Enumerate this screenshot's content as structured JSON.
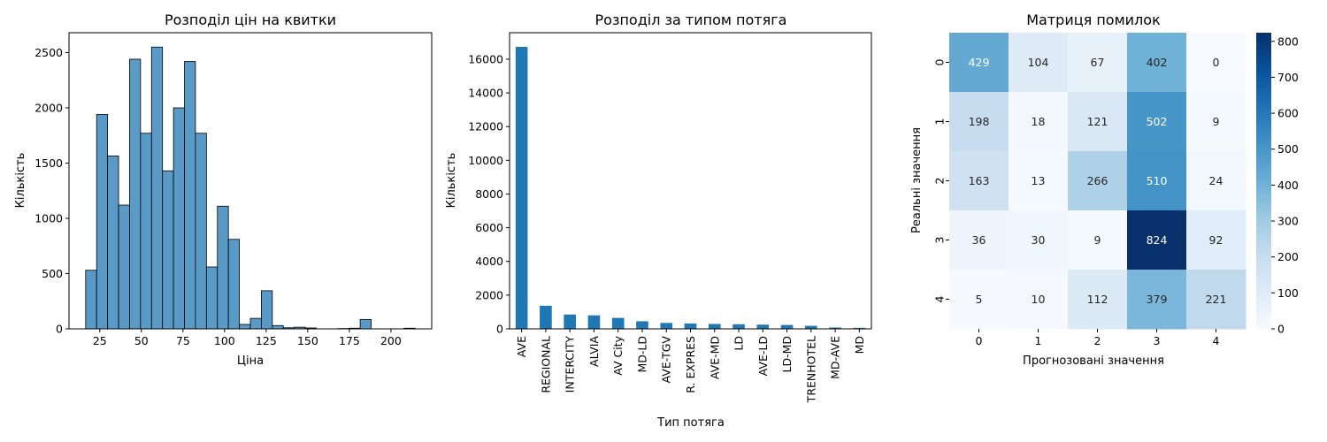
{
  "chart_data": [
    {
      "type": "bar",
      "subtype": "histogram",
      "title": "Розподіл цін на квитки",
      "xlabel": "Ціна",
      "ylabel": "Кількість",
      "xlim": [
        6.5,
        224.5
      ],
      "ylim": [
        0,
        2680
      ],
      "xticks": [
        25,
        50,
        75,
        100,
        125,
        150,
        175,
        200
      ],
      "yticks": [
        0,
        500,
        1000,
        1500,
        2000,
        2500
      ],
      "bin_edges": [
        16.5,
        23.1,
        29.7,
        36.3,
        42.9,
        49.5,
        56.1,
        62.7,
        69.3,
        75.9,
        82.5,
        89.1,
        95.7,
        102.3,
        108.9,
        115.5,
        122.1,
        128.7,
        135.3,
        141.9,
        148.5,
        155.1,
        161.7,
        168.3,
        174.9,
        181.5,
        188.1,
        194.7,
        201.3,
        207.9,
        214.5
      ],
      "counts": [
        530,
        1940,
        1565,
        1120,
        2440,
        1770,
        2550,
        1430,
        2000,
        2420,
        1770,
        560,
        1110,
        810,
        40,
        95,
        345,
        30,
        10,
        15,
        8,
        0,
        0,
        3,
        6,
        85,
        0,
        0,
        0,
        6
      ],
      "color": "#5a9ac6",
      "grid": false
    },
    {
      "type": "bar",
      "title": "Розподіл за типом потяга",
      "xlabel": "Тип потяга",
      "ylabel": "Кількість",
      "ylim": [
        0,
        17570
      ],
      "yticks": [
        0,
        2000,
        4000,
        6000,
        8000,
        10000,
        12000,
        14000,
        16000
      ],
      "categories": [
        "AVE",
        "REGIONAL",
        "INTERCITY",
        "ALVIA",
        "AV City",
        "MD-LD",
        "AVE-TGV",
        "R. EXPRES",
        "AVE-MD",
        "LD",
        "AVE-LD",
        "LD-MD",
        "TRENHOTEL",
        "MD-AVE",
        "MD"
      ],
      "values": [
        16730,
        1370,
        850,
        800,
        650,
        450,
        350,
        320,
        290,
        270,
        250,
        230,
        180,
        80,
        60
      ],
      "color": "#1f77b4",
      "grid": false
    },
    {
      "type": "heatmap",
      "title": "Матриця помилок",
      "xlabel": "Прогнозовані значення",
      "ylabel": "Реальні значення",
      "x_labels": [
        "0",
        "1",
        "2",
        "3",
        "4"
      ],
      "y_labels": [
        "0",
        "1",
        "2",
        "3",
        "4"
      ],
      "values": [
        [
          429,
          104,
          67,
          402,
          0
        ],
        [
          198,
          18,
          121,
          502,
          9
        ],
        [
          163,
          13,
          266,
          510,
          24
        ],
        [
          36,
          30,
          9,
          824,
          92
        ],
        [
          5,
          10,
          112,
          379,
          221
        ]
      ],
      "colormap": "Blues",
      "vmin": 0,
      "vmax": 824,
      "colorbar_ticks": [
        0,
        100,
        200,
        300,
        400,
        500,
        600,
        700,
        800
      ]
    }
  ]
}
